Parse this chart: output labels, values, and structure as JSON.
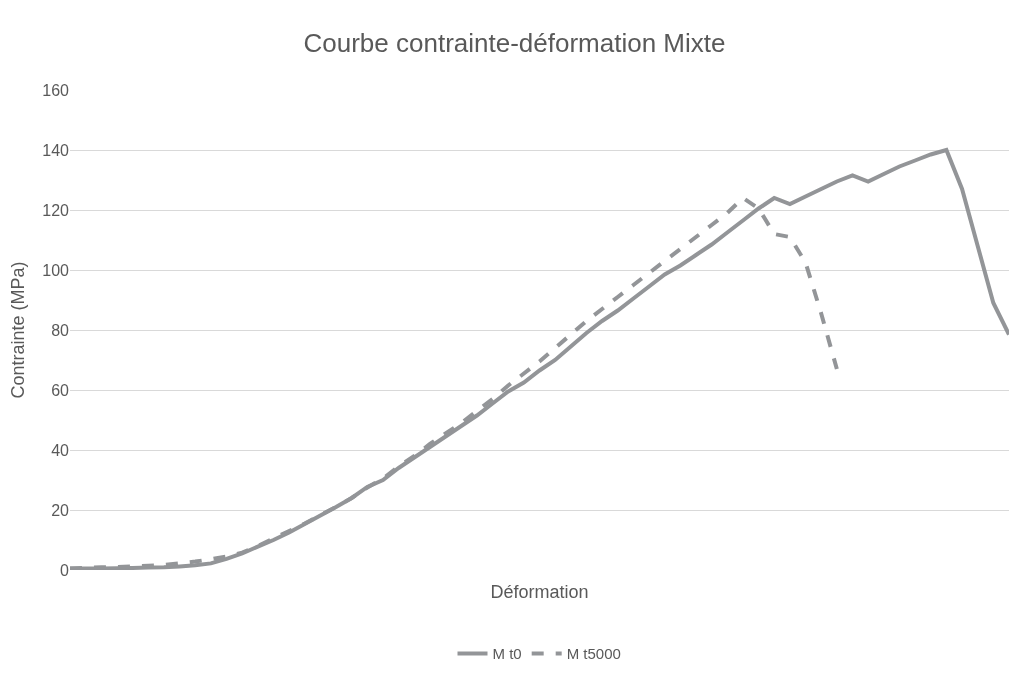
{
  "chart_data": {
    "type": "line",
    "title": "Courbe contrainte-déformation Mixte",
    "xlabel": "Déformation",
    "ylabel": "Contrainte (MPa)",
    "categories": [
      null,
      null,
      null,
      null,
      null,
      null,
      null,
      null,
      null,
      null,
      null,
      null,
      null,
      null,
      null,
      null,
      null,
      null,
      null,
      null,
      null,
      null,
      null,
      null,
      null,
      null,
      null,
      null,
      null,
      null,
      null,
      null,
      null,
      null,
      null,
      null,
      null,
      null,
      null,
      null,
      null,
      null,
      null,
      null,
      null,
      null,
      null,
      null,
      null,
      null,
      null,
      null,
      null,
      null,
      null,
      null,
      null,
      null,
      null,
      null,
      null
    ],
    "series": [
      {
        "name": "M t0",
        "color": "#939598",
        "line_style": "solid",
        "values": [
          0.5,
          0.5,
          0.5,
          0.6,
          0.7,
          0.8,
          0.9,
          1.2,
          1.6,
          2.2,
          3.7,
          5.5,
          7.8,
          10,
          12.5,
          15.3,
          18.2,
          21,
          24,
          27.7,
          30,
          34,
          37.5,
          41,
          44.5,
          48,
          51.5,
          55.5,
          59.5,
          62.5,
          66.5,
          70,
          74.5,
          79,
          83,
          86.5,
          90.5,
          94.5,
          98.5,
          101.5,
          105,
          108.5,
          112.5,
          116.5,
          120.5,
          124,
          122,
          124.5,
          127,
          129.5,
          131.5,
          129.5,
          132,
          134.5,
          136.5,
          138.5,
          140,
          127,
          108,
          89,
          78.5
        ]
      },
      {
        "name": "M t5000",
        "color": "#939598",
        "line_style": "dashed",
        "values": [
          0.5,
          0.7,
          0.9,
          1,
          1.2,
          1.4,
          1.7,
          2.2,
          2.8,
          3.6,
          4.5,
          5.8,
          8,
          10.5,
          13,
          15.5,
          18.3,
          21,
          24,
          27.5,
          30.5,
          34.5,
          38,
          42,
          45.5,
          49,
          53,
          57,
          61.5,
          65.5,
          69.5,
          74,
          78.5,
          83,
          87,
          91,
          95,
          99,
          103,
          107,
          111,
          115,
          119,
          124,
          120.5,
          112,
          111,
          102.5,
          85.5,
          67,
          null,
          null,
          null,
          null,
          null,
          null,
          null,
          null,
          null,
          null,
          null
        ]
      }
    ],
    "ylim": [
      0,
      160
    ],
    "yticks": [
      0,
      20,
      40,
      60,
      80,
      100,
      120,
      140,
      160
    ],
    "grid": "y",
    "legend": "bottom",
    "tick_labels": "y",
    "marker": "none"
  }
}
